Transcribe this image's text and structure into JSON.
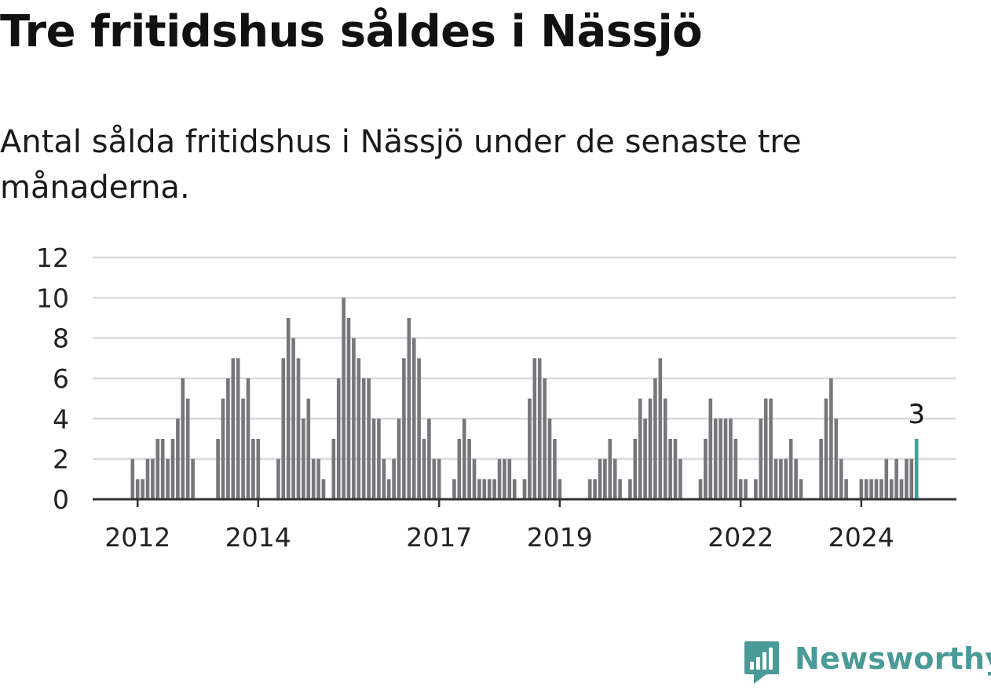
{
  "title": "Tre fritidshus såldes i Nässjö",
  "subtitle": "Antal sålda fritidshus i Nässjö under de senaste tre månaderna.",
  "brand": {
    "name": "Newsworthy",
    "color": "#4a9a98",
    "icon": "newsworthy-logo-icon"
  },
  "colors": {
    "bar": "#76767b",
    "highlight": "#3aa39e",
    "grid": "#d9d9d9",
    "axis": "#333333"
  },
  "chart_data": {
    "type": "bar",
    "title": "Tre fritidshus såldes i Nässjö",
    "subtitle": "Antal sålda fritidshus i Nässjö under de senaste tre månaderna.",
    "ylim": [
      0,
      12
    ],
    "yticks": [
      0,
      2,
      4,
      6,
      8,
      10,
      12
    ],
    "grid": true,
    "x_start": "2011-12",
    "x_interval": "month",
    "x_tick_labels": [
      {
        "label": "2012",
        "x": "2012-01"
      },
      {
        "label": "2014",
        "x": "2014-01"
      },
      {
        "label": "2017",
        "x": "2017-01"
      },
      {
        "label": "2019",
        "x": "2019-01"
      },
      {
        "label": "2022",
        "x": "2022-01"
      },
      {
        "label": "2024",
        "x": "2024-01"
      }
    ],
    "values": [
      2,
      1,
      1,
      2,
      2,
      3,
      3,
      2,
      3,
      4,
      6,
      5,
      2,
      0,
      0,
      0,
      0,
      3,
      5,
      6,
      7,
      7,
      5,
      6,
      3,
      3,
      0,
      0,
      0,
      2,
      7,
      9,
      8,
      7,
      4,
      5,
      2,
      2,
      1,
      0,
      3,
      6,
      10,
      9,
      8,
      7,
      6,
      6,
      4,
      4,
      2,
      1,
      2,
      4,
      7,
      9,
      8,
      7,
      3,
      4,
      2,
      2,
      0,
      0,
      1,
      3,
      4,
      3,
      2,
      1,
      1,
      1,
      1,
      2,
      2,
      2,
      1,
      0,
      1,
      5,
      7,
      7,
      6,
      4,
      3,
      1,
      0,
      0,
      0,
      0,
      0,
      1,
      1,
      2,
      2,
      3,
      2,
      1,
      0,
      1,
      3,
      5,
      4,
      5,
      6,
      7,
      5,
      3,
      3,
      2,
      0,
      0,
      0,
      1,
      3,
      5,
      4,
      4,
      4,
      4,
      3,
      1,
      1,
      0,
      1,
      4,
      5,
      5,
      2,
      2,
      2,
      3,
      2,
      1,
      0,
      0,
      0,
      3,
      5,
      6,
      4,
      2,
      1,
      0,
      0,
      1,
      1,
      1,
      1,
      1,
      2,
      1,
      2,
      1,
      2,
      2,
      3
    ],
    "highlight_index": 156,
    "annotation": {
      "index": 156,
      "label": "3"
    }
  }
}
